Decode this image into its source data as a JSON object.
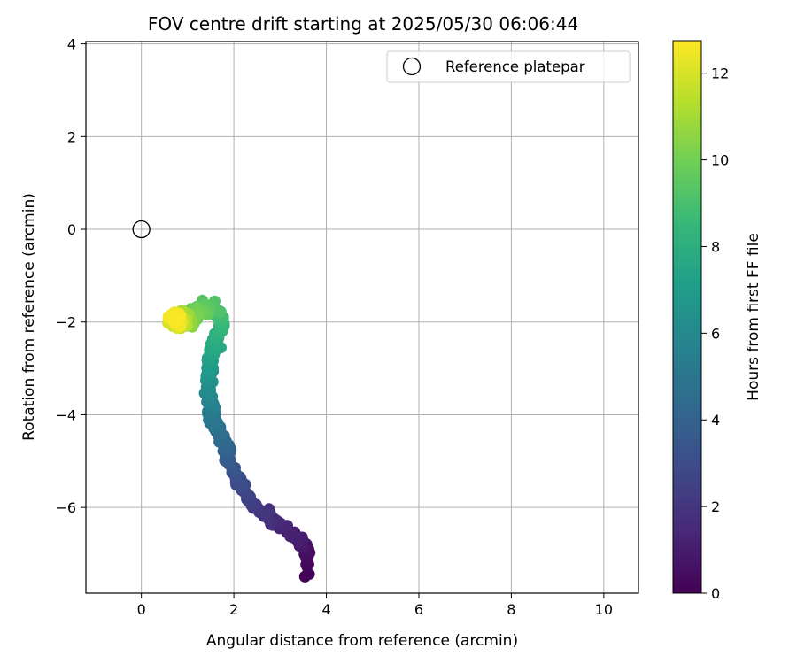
{
  "chart_data": {
    "type": "scatter",
    "title": "FOV centre drift starting at 2025/05/30 06:06:44",
    "xlabel": "Angular distance from reference (arcmin)",
    "ylabel": "Rotation from reference (arcmin)",
    "xlim": [
      -1.2,
      10.75
    ],
    "ylim": [
      -7.85,
      4.05
    ],
    "x_ticks": [
      0,
      2,
      4,
      6,
      8,
      10
    ],
    "y_ticks": [
      -6,
      -4,
      -2,
      0,
      2,
      4
    ],
    "x_tick_labels": [
      "0",
      "2",
      "4",
      "6",
      "8",
      "10"
    ],
    "y_tick_labels": [
      "−6",
      "−4",
      "−2",
      "0",
      "2",
      "4"
    ],
    "grid": true,
    "legend": {
      "placement": "top-right",
      "entries": [
        "Reference platepar"
      ]
    },
    "reference_point": {
      "name": "Reference platepar",
      "x": 0,
      "y": 0,
      "marker": "open-circle"
    },
    "colorbar": {
      "label": "Hours from first FF file",
      "range": [
        0,
        12.75
      ],
      "ticks": [
        0,
        2,
        4,
        6,
        8,
        10,
        12
      ],
      "tick_labels": [
        "0",
        "2",
        "4",
        "6",
        "8",
        "10",
        "12"
      ],
      "colormap": "viridis",
      "colors": [
        "#440154",
        "#482878",
        "#3e4989",
        "#31688e",
        "#26828e",
        "#1f9e89",
        "#35b779",
        "#6ece58",
        "#b5de2b",
        "#fde725"
      ]
    },
    "track": [
      {
        "t": 0.0,
        "x": 3.55,
        "y": -7.45
      },
      {
        "t": 0.5,
        "x": 3.6,
        "y": -6.9
      },
      {
        "t": 1.0,
        "x": 3.4,
        "y": -6.7
      },
      {
        "t": 1.5,
        "x": 2.9,
        "y": -6.3
      },
      {
        "t": 2.0,
        "x": 2.6,
        "y": -6.1
      },
      {
        "t": 2.5,
        "x": 2.3,
        "y": -5.8
      },
      {
        "t": 3.0,
        "x": 2.1,
        "y": -5.4
      },
      {
        "t": 3.5,
        "x": 1.9,
        "y": -5.05
      },
      {
        "t": 4.0,
        "x": 1.85,
        "y": -4.7
      },
      {
        "t": 4.5,
        "x": 1.7,
        "y": -4.4
      },
      {
        "t": 5.0,
        "x": 1.55,
        "y": -4.1
      },
      {
        "t": 5.5,
        "x": 1.5,
        "y": -3.8
      },
      {
        "t": 6.0,
        "x": 1.45,
        "y": -3.5
      },
      {
        "t": 6.5,
        "x": 1.45,
        "y": -3.2
      },
      {
        "t": 7.0,
        "x": 1.5,
        "y": -2.9
      },
      {
        "t": 7.5,
        "x": 1.55,
        "y": -2.6
      },
      {
        "t": 8.0,
        "x": 1.65,
        "y": -2.3
      },
      {
        "t": 8.5,
        "x": 1.75,
        "y": -2.0
      },
      {
        "t": 9.0,
        "x": 1.6,
        "y": -1.7
      },
      {
        "t": 9.5,
        "x": 1.35,
        "y": -1.65
      },
      {
        "t": 10.0,
        "x": 1.15,
        "y": -1.85
      },
      {
        "t": 10.5,
        "x": 1.0,
        "y": -2.0
      },
      {
        "t": 11.0,
        "x": 0.9,
        "y": -1.85
      },
      {
        "t": 11.5,
        "x": 0.8,
        "y": -2.05
      },
      {
        "t": 12.0,
        "x": 0.7,
        "y": -1.95
      },
      {
        "t": 12.7,
        "x": 0.75,
        "y": -1.9
      }
    ]
  }
}
